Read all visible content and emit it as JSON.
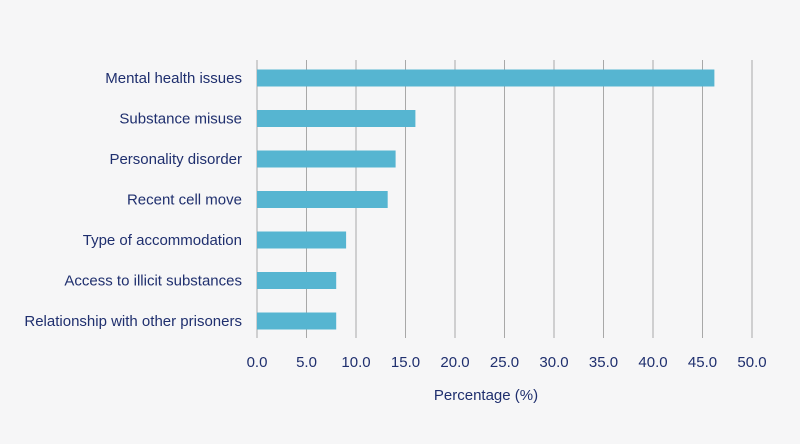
{
  "chart_data": {
    "type": "bar",
    "orientation": "horizontal",
    "categories": [
      "Mental health issues",
      "Substance misuse",
      "Personality disorder",
      "Recent cell move",
      "Type of accommodation",
      "Access to illicit substances",
      "Relationship with other prisoners"
    ],
    "values": [
      46.2,
      16.0,
      14.0,
      13.2,
      9.0,
      8.0,
      8.0
    ],
    "xlabel": "Percentage (%)",
    "ylabel": "",
    "xlim": [
      0,
      50
    ],
    "xticks": [
      "0.0",
      "5.0",
      "10.0",
      "15.0",
      "20.0",
      "25.0",
      "30.0",
      "35.0",
      "40.0",
      "45.0",
      "50.0"
    ],
    "grid": "vertical",
    "bar_color": "#56b5d1",
    "grid_color": "#a8a8a8",
    "text_color": "#1f2f6e",
    "background": "#f6f6f7"
  }
}
